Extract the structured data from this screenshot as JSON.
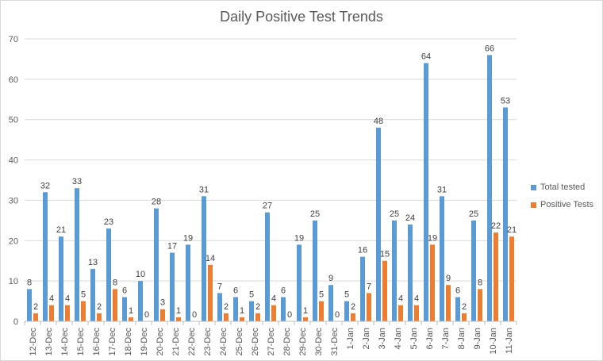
{
  "chart_data": {
    "type": "bar",
    "title": "Daily Positive Test Trends",
    "xlabel": "",
    "ylabel": "",
    "ylim": [
      0,
      70
    ],
    "yticks": [
      0,
      10,
      20,
      30,
      40,
      50,
      60,
      70
    ],
    "grid": true,
    "legend_position": "right",
    "categories": [
      "12-Dec",
      "13-Dec",
      "14-Dec",
      "15-Dec",
      "16-Dec",
      "17-Dec",
      "18-Dec",
      "19-Dec",
      "20-Dec",
      "21-Dec",
      "22-Dec",
      "23-Dec",
      "24-Dec",
      "25-Dec",
      "26-Dec",
      "27-Dec",
      "28-Dec",
      "29-Dec",
      "30-Dec",
      "31-Dec",
      "1-Jan",
      "2-Jan",
      "3-Jan",
      "4-Jan",
      "5-Jan",
      "6-Jan",
      "7-Jan",
      "8-Jan",
      "9-Jan",
      "10-Jan",
      "11-Jan"
    ],
    "series": [
      {
        "name": "Total tested",
        "color": "#5b9bd5",
        "values": [
          8,
          32,
          21,
          33,
          13,
          23,
          6,
          10,
          28,
          17,
          19,
          31,
          7,
          6,
          5,
          27,
          6,
          19,
          25,
          9,
          5,
          16,
          48,
          25,
          24,
          64,
          31,
          6,
          25,
          66,
          53
        ],
        "labels": [
          "8",
          "32",
          "21",
          "33",
          "13",
          "23",
          "6",
          "10",
          "28",
          "17",
          "19",
          "31",
          "7",
          "6",
          "5",
          "27",
          "6",
          "19",
          "25",
          "9",
          "5",
          "16",
          "48",
          "25",
          "24",
          "64",
          "31",
          "6",
          "25",
          "66",
          "53"
        ]
      },
      {
        "name": "Positive Tests",
        "color": "#ed7d31",
        "values": [
          2,
          4,
          4,
          5,
          2,
          8,
          1,
          0,
          3,
          1,
          0,
          14,
          2,
          1,
          2,
          4,
          0,
          1,
          5,
          0,
          2,
          7,
          15,
          4,
          4,
          19,
          9,
          2,
          8,
          22,
          21
        ],
        "labels": [
          "2",
          "4",
          "4",
          "5",
          "2",
          "8",
          "1",
          "0",
          "3",
          "1",
          "0",
          "14",
          "2",
          "1",
          "2",
          "4",
          "0",
          "1",
          "5",
          "0",
          "2",
          "7",
          "15",
          "4",
          "4",
          "19",
          "9",
          "2",
          "8",
          "22",
          "21"
        ]
      }
    ]
  }
}
